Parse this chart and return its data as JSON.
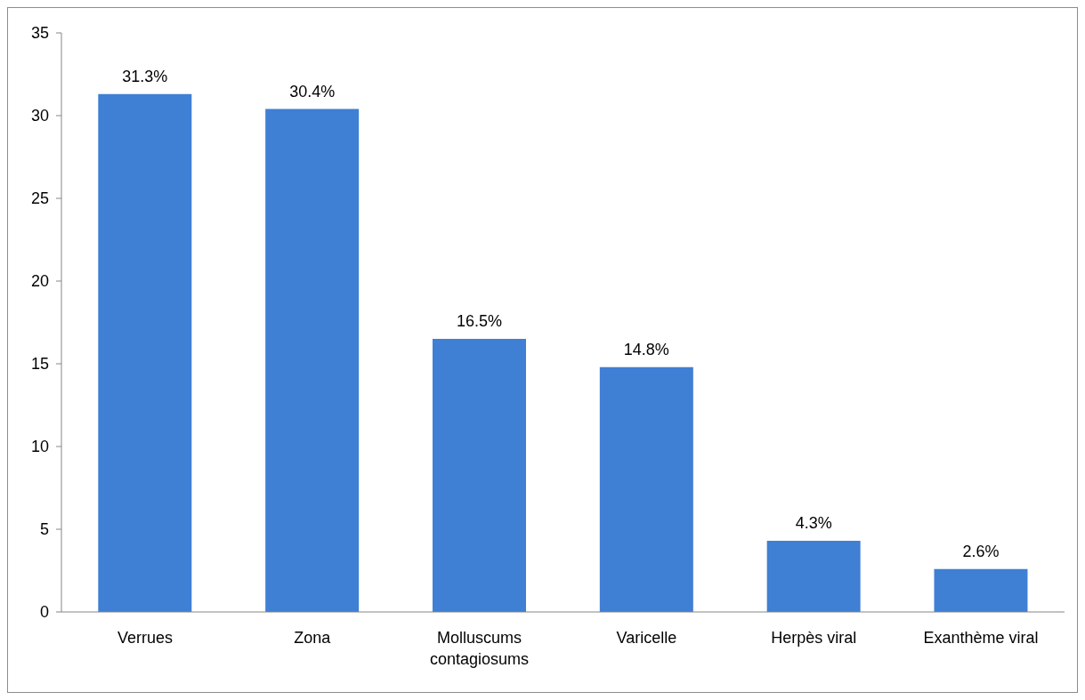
{
  "chart_data": {
    "type": "bar",
    "categories": [
      "Verrues",
      "Zona",
      "Molluscums contagiosums",
      "Varicelle",
      "Herpès viral",
      "Exanthème viral"
    ],
    "values": [
      31.3,
      30.4,
      16.5,
      14.8,
      4.3,
      2.6
    ],
    "value_labels": [
      "31.3%",
      "30.4%",
      "16.5%",
      "14.8%",
      "4.3%",
      "2.6%"
    ],
    "color": "#3f7fd4",
    "ylim": [
      0,
      35
    ],
    "yticks": [
      0,
      5,
      10,
      15,
      20,
      25,
      30,
      35
    ],
    "grid": false,
    "legend": false
  }
}
